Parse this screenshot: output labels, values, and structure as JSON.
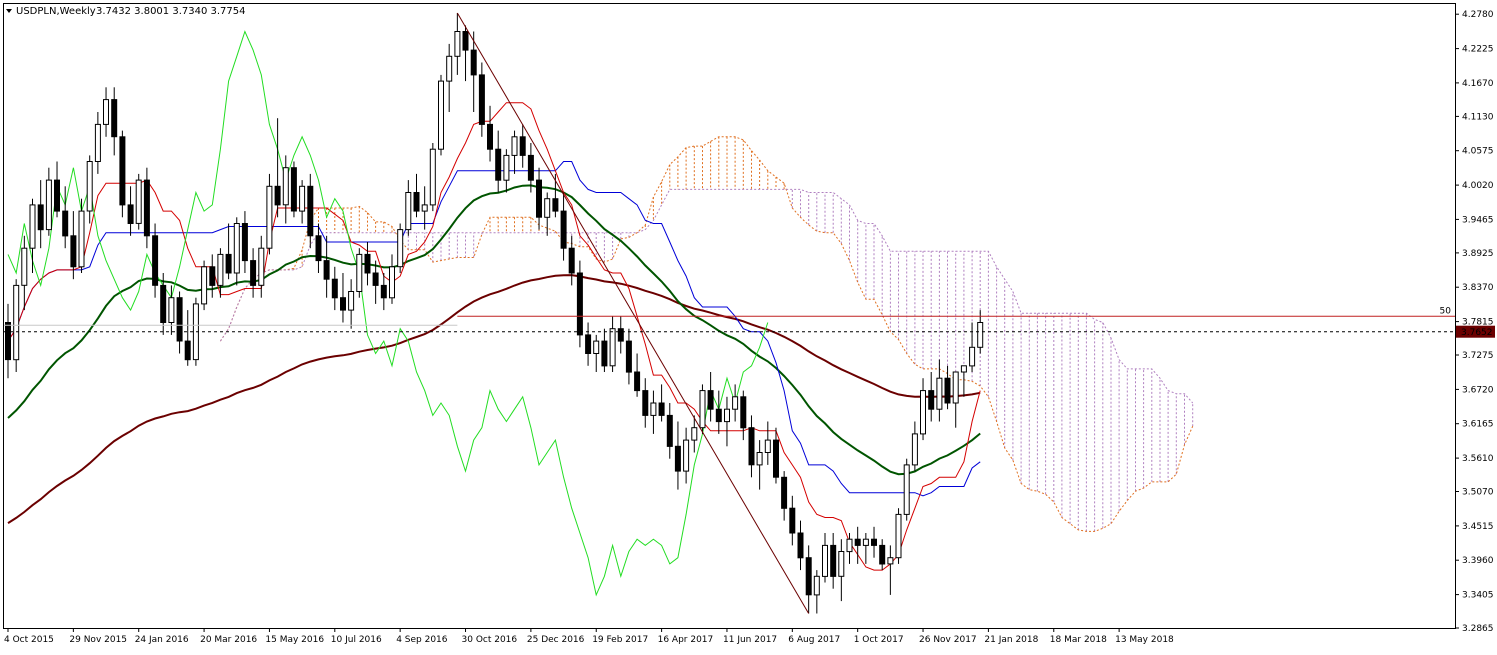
{
  "header": {
    "symbol": "USDPLN,Weekly",
    "ohlc": "3.7432 3.8001 3.7340 3.7754"
  },
  "chart_data": {
    "type": "candlestick",
    "symbol": "USDPLN",
    "timeframe": "Weekly",
    "open": 3.7432,
    "high": 3.8001,
    "low": 3.734,
    "close": 3.7754,
    "ylim": [
      3.2865,
      4.2945
    ],
    "y_ticks": [
      "4.2780",
      "4.2225",
      "4.1670",
      "4.1130",
      "4.0575",
      "4.0020",
      "3.9465",
      "3.8925",
      "3.8370",
      "3.7815",
      "3.7275",
      "3.6720",
      "3.6165",
      "3.5610",
      "3.5070",
      "3.4515",
      "3.3960",
      "3.3405",
      "3.2865"
    ],
    "x_ticks": [
      {
        "label": "4 Oct 2015",
        "i": 0
      },
      {
        "label": "29 Nov 2015",
        "i": 8
      },
      {
        "label": "24 Jan 2016",
        "i": 16
      },
      {
        "label": "20 Mar 2016",
        "i": 24
      },
      {
        "label": "15 May 2016",
        "i": 32
      },
      {
        "label": "10 Jul 2016",
        "i": 40
      },
      {
        "label": "4 Sep 2016",
        "i": 48
      },
      {
        "label": "30 Oct 2016",
        "i": 56
      },
      {
        "label": "25 Dec 2016",
        "i": 64
      },
      {
        "label": "19 Feb 2017",
        "i": 72
      },
      {
        "label": "16 Apr 2017",
        "i": 80
      },
      {
        "label": "11 Jun 2017",
        "i": 88
      },
      {
        "label": "6 Aug 2017",
        "i": 96
      },
      {
        "label": "1 Oct 2017",
        "i": 104
      },
      {
        "label": "26 Nov 2017",
        "i": 112
      },
      {
        "label": "21 Jan 2018",
        "i": 120
      },
      {
        "label": "18 Mar 2018",
        "i": 128
      },
      {
        "label": "13 May 2018",
        "i": 136
      }
    ],
    "level_label": "50",
    "level_50": 3.79,
    "current_price_label": "3.7652",
    "current_price": 3.7652,
    "candles": [
      [
        3.78,
        3.81,
        3.69,
        3.72
      ],
      [
        3.72,
        3.85,
        3.7,
        3.84
      ],
      [
        3.84,
        3.92,
        3.8,
        3.9
      ],
      [
        3.9,
        3.98,
        3.86,
        3.97
      ],
      [
        3.97,
        4.01,
        3.9,
        3.93
      ],
      [
        3.93,
        4.03,
        3.92,
        4.01
      ],
      [
        4.01,
        4.04,
        3.95,
        3.96
      ],
      [
        3.96,
        4.0,
        3.9,
        3.92
      ],
      [
        3.92,
        3.96,
        3.85,
        3.87
      ],
      [
        3.87,
        3.98,
        3.86,
        3.96
      ],
      [
        3.96,
        4.05,
        3.94,
        4.04
      ],
      [
        4.04,
        4.12,
        4.02,
        4.1
      ],
      [
        4.1,
        4.16,
        4.08,
        4.14
      ],
      [
        4.14,
        4.16,
        4.05,
        4.08
      ],
      [
        4.08,
        4.09,
        3.95,
        3.97
      ],
      [
        3.97,
        4.0,
        3.92,
        3.94
      ],
      [
        3.94,
        4.02,
        3.93,
        4.01
      ],
      [
        4.01,
        4.03,
        3.9,
        3.92
      ],
      [
        3.92,
        3.94,
        3.82,
        3.84
      ],
      [
        3.84,
        3.86,
        3.76,
        3.78
      ],
      [
        3.78,
        3.84,
        3.76,
        3.82
      ],
      [
        3.82,
        3.83,
        3.73,
        3.75
      ],
      [
        3.75,
        3.8,
        3.71,
        3.72
      ],
      [
        3.72,
        3.82,
        3.71,
        3.81
      ],
      [
        3.81,
        3.88,
        3.8,
        3.87
      ],
      [
        3.87,
        3.89,
        3.82,
        3.84
      ],
      [
        3.84,
        3.9,
        3.82,
        3.89
      ],
      [
        3.89,
        3.94,
        3.85,
        3.86
      ],
      [
        3.86,
        3.95,
        3.84,
        3.94
      ],
      [
        3.94,
        3.96,
        3.86,
        3.88
      ],
      [
        3.88,
        3.9,
        3.82,
        3.84
      ],
      [
        3.84,
        3.92,
        3.82,
        3.9
      ],
      [
        3.9,
        4.02,
        3.89,
        4.0
      ],
      [
        4.0,
        4.11,
        3.95,
        3.97
      ],
      [
        3.97,
        4.05,
        3.94,
        4.03
      ],
      [
        4.03,
        4.04,
        3.95,
        3.96
      ],
      [
        3.96,
        4.01,
        3.94,
        4.0
      ],
      [
        4.0,
        4.02,
        3.9,
        3.92
      ],
      [
        3.92,
        3.94,
        3.86,
        3.88
      ],
      [
        3.88,
        3.92,
        3.82,
        3.85
      ],
      [
        3.85,
        3.87,
        3.8,
        3.82
      ],
      [
        3.82,
        3.86,
        3.78,
        3.8
      ],
      [
        3.8,
        3.85,
        3.77,
        3.83
      ],
      [
        3.83,
        3.9,
        3.82,
        3.89
      ],
      [
        3.89,
        3.91,
        3.84,
        3.86
      ],
      [
        3.86,
        3.88,
        3.81,
        3.84
      ],
      [
        3.84,
        3.86,
        3.8,
        3.82
      ],
      [
        3.82,
        3.89,
        3.81,
        3.87
      ],
      [
        3.87,
        3.94,
        3.86,
        3.93
      ],
      [
        3.93,
        4.01,
        3.92,
        3.99
      ],
      [
        3.99,
        4.02,
        3.95,
        3.96
      ],
      [
        3.96,
        4.0,
        3.93,
        3.97
      ],
      [
        3.97,
        4.07,
        3.96,
        4.06
      ],
      [
        4.06,
        4.18,
        4.05,
        4.17
      ],
      [
        4.17,
        4.23,
        4.12,
        4.21
      ],
      [
        4.21,
        4.28,
        4.18,
        4.25
      ],
      [
        4.25,
        4.26,
        4.17,
        4.22
      ],
      [
        4.22,
        4.25,
        4.12,
        4.18
      ],
      [
        4.18,
        4.2,
        4.08,
        4.1
      ],
      [
        4.1,
        4.13,
        4.04,
        4.06
      ],
      [
        4.06,
        4.09,
        3.99,
        4.01
      ],
      [
        4.01,
        4.06,
        3.99,
        4.05
      ],
      [
        4.05,
        4.09,
        4.02,
        4.08
      ],
      [
        4.08,
        4.1,
        4.03,
        4.05
      ],
      [
        4.05,
        4.07,
        3.99,
        4.01
      ],
      [
        4.01,
        4.03,
        3.93,
        3.95
      ],
      [
        3.95,
        3.99,
        3.92,
        3.98
      ],
      [
        3.98,
        4.02,
        3.95,
        3.96
      ],
      [
        3.96,
        3.99,
        3.88,
        3.9
      ],
      [
        3.9,
        3.92,
        3.84,
        3.86
      ],
      [
        3.86,
        3.88,
        3.74,
        3.76
      ],
      [
        3.76,
        3.78,
        3.71,
        3.73
      ],
      [
        3.73,
        3.76,
        3.7,
        3.75
      ],
      [
        3.75,
        3.77,
        3.7,
        3.71
      ],
      [
        3.71,
        3.79,
        3.7,
        3.77
      ],
      [
        3.77,
        3.79,
        3.73,
        3.75
      ],
      [
        3.75,
        3.77,
        3.68,
        3.7
      ],
      [
        3.7,
        3.73,
        3.66,
        3.67
      ],
      [
        3.67,
        3.69,
        3.61,
        3.63
      ],
      [
        3.63,
        3.67,
        3.6,
        3.65
      ],
      [
        3.65,
        3.68,
        3.62,
        3.63
      ],
      [
        3.63,
        3.65,
        3.56,
        3.58
      ],
      [
        3.58,
        3.62,
        3.51,
        3.54
      ],
      [
        3.54,
        3.61,
        3.52,
        3.59
      ],
      [
        3.59,
        3.63,
        3.57,
        3.61
      ],
      [
        3.61,
        3.68,
        3.6,
        3.67
      ],
      [
        3.67,
        3.7,
        3.62,
        3.64
      ],
      [
        3.64,
        3.67,
        3.6,
        3.62
      ],
      [
        3.62,
        3.66,
        3.58,
        3.64
      ],
      [
        3.64,
        3.68,
        3.62,
        3.66
      ],
      [
        3.66,
        3.67,
        3.59,
        3.61
      ],
      [
        3.61,
        3.63,
        3.53,
        3.55
      ],
      [
        3.55,
        3.59,
        3.51,
        3.57
      ],
      [
        3.57,
        3.62,
        3.55,
        3.59
      ],
      [
        3.59,
        3.61,
        3.52,
        3.53
      ],
      [
        3.53,
        3.54,
        3.46,
        3.48
      ],
      [
        3.48,
        3.5,
        3.42,
        3.44
      ],
      [
        3.44,
        3.46,
        3.38,
        3.4
      ],
      [
        3.4,
        3.42,
        3.31,
        3.34
      ],
      [
        3.34,
        3.38,
        3.31,
        3.37
      ],
      [
        3.37,
        3.44,
        3.36,
        3.42
      ],
      [
        3.42,
        3.44,
        3.35,
        3.37
      ],
      [
        3.37,
        3.43,
        3.33,
        3.41
      ],
      [
        3.41,
        3.44,
        3.39,
        3.43
      ],
      [
        3.43,
        3.45,
        3.39,
        3.42
      ],
      [
        3.42,
        3.44,
        3.39,
        3.43
      ],
      [
        3.43,
        3.45,
        3.4,
        3.42
      ],
      [
        3.42,
        3.43,
        3.38,
        3.39
      ],
      [
        3.39,
        3.42,
        3.34,
        3.4
      ],
      [
        3.4,
        3.48,
        3.39,
        3.47
      ],
      [
        3.47,
        3.56,
        3.46,
        3.55
      ],
      [
        3.55,
        3.62,
        3.54,
        3.6
      ],
      [
        3.6,
        3.69,
        3.59,
        3.67
      ],
      [
        3.67,
        3.7,
        3.62,
        3.64
      ],
      [
        3.64,
        3.72,
        3.62,
        3.69
      ],
      [
        3.69,
        3.71,
        3.64,
        3.65
      ],
      [
        3.65,
        3.7,
        3.61,
        3.7
      ],
      [
        3.7,
        3.71,
        3.66,
        3.71
      ],
      [
        3.71,
        3.78,
        3.7,
        3.74
      ],
      [
        3.74,
        3.8,
        3.73,
        3.78
      ]
    ],
    "series_colors": {
      "candle_bull": "#ffffff",
      "candle_bear": "#000000",
      "tenkan": "#d40000",
      "kijun": "#0000d8",
      "chikou": "#22dd22",
      "ma_fast": "#005500",
      "ma_slow": "#6b0000",
      "cloud_up": "#e07020",
      "cloud_down": "#b080c0",
      "trendline": "#6b0000",
      "level_line": "#c02020",
      "price_tag": "#6b0000"
    }
  }
}
